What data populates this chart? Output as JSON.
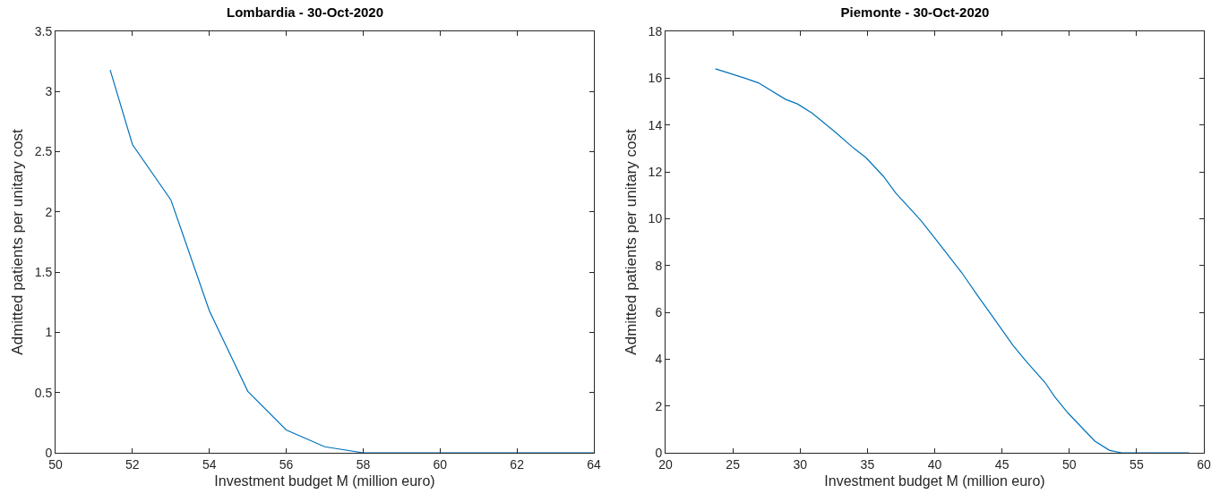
{
  "chart_data": [
    {
      "type": "line",
      "title": "Lombardia - 30-Oct-2020",
      "xlabel": "Investment budget M (million euro)",
      "ylabel": "Admitted patients per unitary cost",
      "x": [
        51.42,
        52,
        53,
        54,
        55,
        56,
        57,
        58,
        64
      ],
      "series": [
        {
          "color": "#0072bd",
          "values": [
            3.18,
            2.56,
            2.1,
            1.18,
            0.51,
            0.19,
            0.05,
            0,
            0
          ]
        }
      ],
      "xlim": [
        50,
        64
      ],
      "xticks": [
        50,
        52,
        54,
        56,
        58,
        60,
        62,
        64
      ],
      "ylim": [
        0,
        3.5
      ],
      "yticks": [
        0,
        0.5,
        1,
        1.5,
        2,
        2.5,
        3,
        3.5
      ],
      "marker": "none",
      "line_style": "solid"
    },
    {
      "type": "line",
      "title": "Piemonte - 30-Oct-2020",
      "xlabel": "Investment budget M (million euro)",
      "ylabel": "Admitted patients per unitary cost",
      "x": [
        23.7,
        25.9,
        26.9,
        28.9,
        29.8,
        30.9,
        32.6,
        34,
        34.9,
        36.2,
        37.1,
        39,
        40.1,
        42,
        43.2,
        44.2,
        45.8,
        46.8,
        48.2,
        48.9,
        49.9,
        50.9,
        51.9,
        53,
        53.9,
        58.9
      ],
      "series": [
        {
          "color": "#0072bd",
          "values": [
            16.4,
            16.0,
            15.8,
            15.1,
            14.9,
            14.5,
            13.7,
            13.0,
            12.6,
            11.8,
            11.1,
            9.9,
            9.1,
            7.7,
            6.7,
            5.9,
            4.6,
            3.9,
            3.0,
            2.4,
            1.7,
            1.1,
            0.5,
            0.1,
            0,
            0
          ]
        }
      ],
      "xlim": [
        20,
        60
      ],
      "xticks": [
        20,
        25,
        30,
        35,
        40,
        45,
        50,
        55,
        60
      ],
      "ylim": [
        0,
        18
      ],
      "yticks": [
        0,
        2,
        4,
        6,
        8,
        10,
        12,
        14,
        16,
        18
      ],
      "marker": "none",
      "line_style": "solid"
    }
  ]
}
